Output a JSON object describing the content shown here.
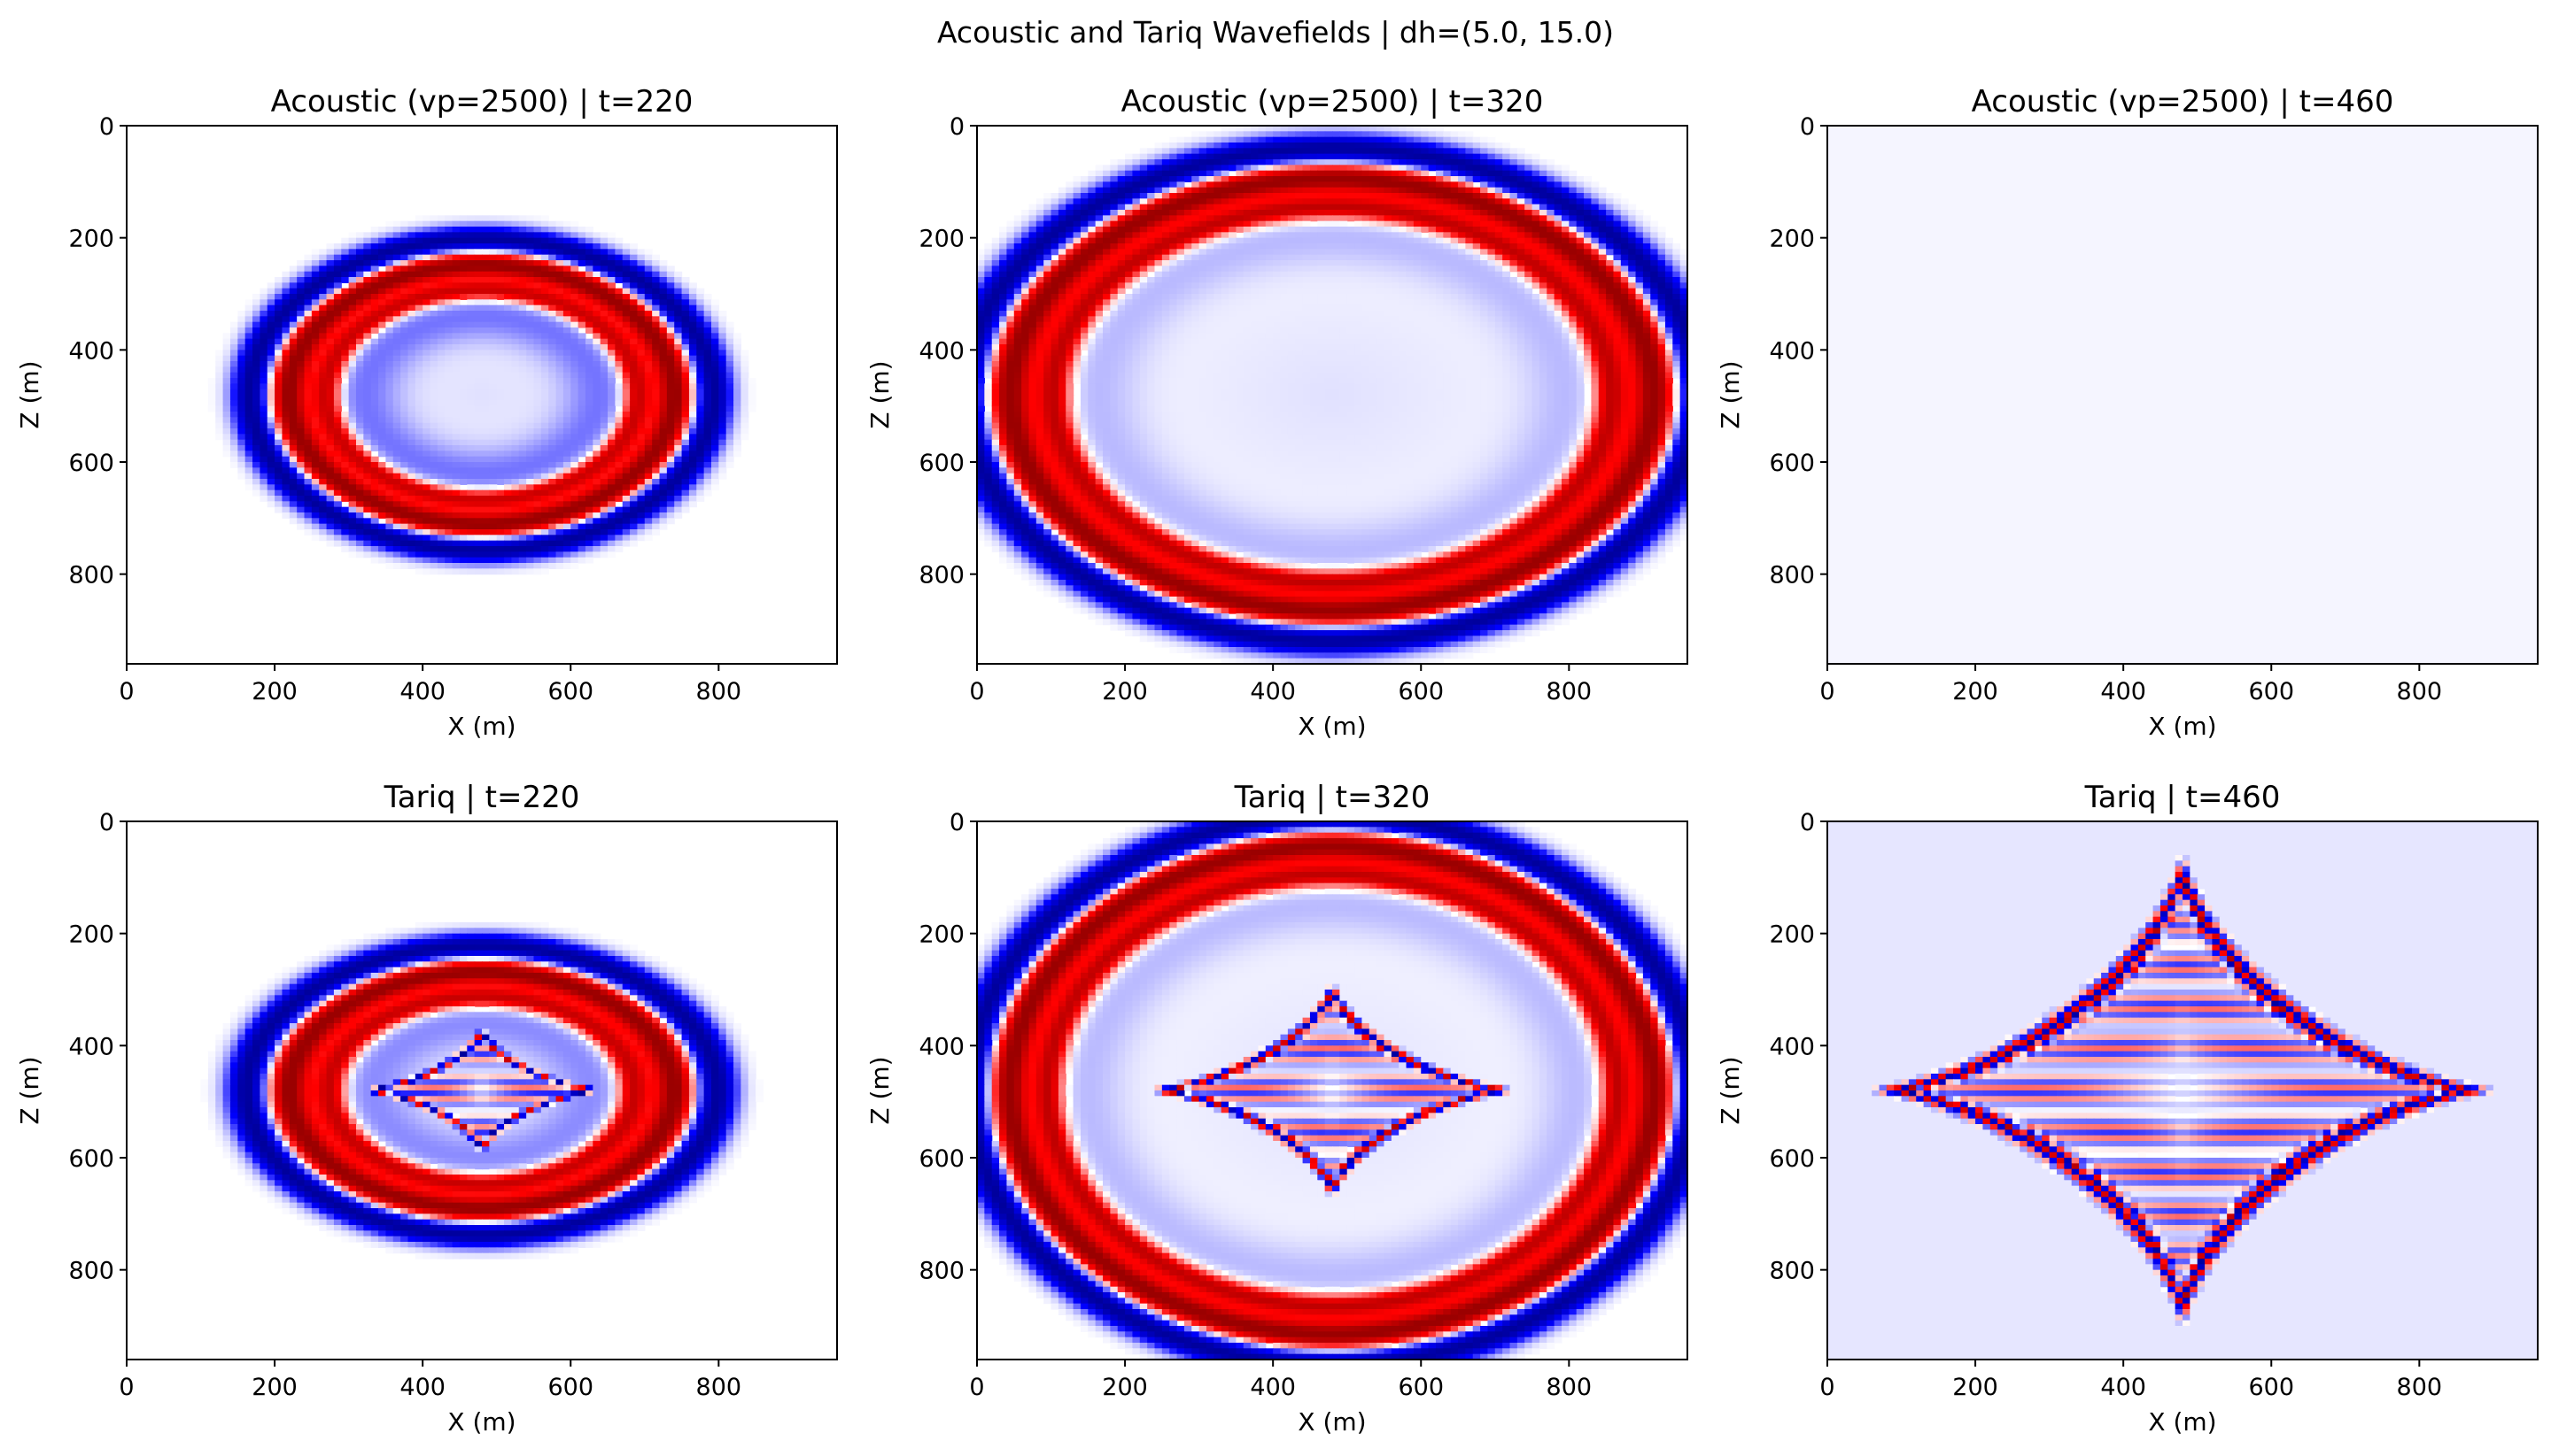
{
  "figure": {
    "suptitle": "Acoustic and Tariq Wavefields | dh=(5.0, 15.0)"
  },
  "chart_data": [
    {
      "type": "heatmap",
      "title": "Acoustic (vp=2500) | t=220",
      "xlabel": "X (m)",
      "ylabel": "Z (m)",
      "xlim": [
        0,
        960
      ],
      "ylim": [
        960,
        0
      ],
      "xticks": [
        "0",
        "200",
        "400",
        "600",
        "800"
      ],
      "yticks": [
        "0",
        "200",
        "400",
        "600",
        "800"
      ],
      "colormap": "seismic",
      "field": {
        "kind": "ring",
        "cx": 480,
        "cz": 480,
        "ax": 265,
        "az": 235,
        "band": 78,
        "inner_halo": 0.25
      }
    },
    {
      "type": "heatmap",
      "title": "Acoustic (vp=2500) | t=320",
      "xlabel": "X (m)",
      "ylabel": "Z (m)",
      "xlim": [
        0,
        960
      ],
      "ylim": [
        960,
        0
      ],
      "xticks": [
        "0",
        "200",
        "400",
        "600",
        "800"
      ],
      "yticks": [
        "0",
        "200",
        "400",
        "600",
        "800"
      ],
      "colormap": "seismic",
      "field": {
        "kind": "ring",
        "cx": 480,
        "cz": 480,
        "ax": 440,
        "az": 390,
        "band": 90,
        "inner_halo": 0.12
      }
    },
    {
      "type": "heatmap",
      "title": "Acoustic (vp=2500) | t=460",
      "xlabel": "X (m)",
      "ylabel": "Z (m)",
      "xlim": [
        0,
        960
      ],
      "ylim": [
        960,
        0
      ],
      "xticks": [
        "0",
        "200",
        "400",
        "600",
        "800"
      ],
      "yticks": [
        "0",
        "200",
        "400",
        "600",
        "800"
      ],
      "colormap": "seismic",
      "field": {
        "kind": "empty"
      }
    },
    {
      "type": "heatmap",
      "title": "Tariq | t=220",
      "xlabel": "X (m)",
      "ylabel": "Z (m)",
      "xlim": [
        0,
        960
      ],
      "ylim": [
        960,
        0
      ],
      "xticks": [
        "0",
        "200",
        "400",
        "600",
        "800"
      ],
      "yticks": [
        "0",
        "200",
        "400",
        "600",
        "800"
      ],
      "colormap": "seismic",
      "field": {
        "kind": "ring_star",
        "cx": 480,
        "cz": 480,
        "ax": 265,
        "az": 215,
        "band": 78,
        "inner_halo": 0.2,
        "star_rx": 165,
        "star_rz": 110
      }
    },
    {
      "type": "heatmap",
      "title": "Tariq | t=320",
      "xlabel": "X (m)",
      "ylabel": "Z (m)",
      "xlim": [
        0,
        960
      ],
      "ylim": [
        960,
        0
      ],
      "xticks": [
        "0",
        "200",
        "400",
        "600",
        "800"
      ],
      "yticks": [
        "0",
        "200",
        "400",
        "600",
        "800"
      ],
      "colormap": "seismic",
      "field": {
        "kind": "ring_star",
        "cx": 480,
        "cz": 480,
        "ax": 440,
        "az": 440,
        "band": 90,
        "inner_halo": 0.12,
        "star_rx": 245,
        "star_rz": 185
      }
    },
    {
      "type": "heatmap",
      "title": "Tariq | t=460",
      "xlabel": "X (m)",
      "ylabel": "Z (m)",
      "xlim": [
        0,
        960
      ],
      "ylim": [
        960,
        0
      ],
      "xticks": [
        "0",
        "200",
        "400",
        "600",
        "800"
      ],
      "yticks": [
        "0",
        "200",
        "400",
        "600",
        "800"
      ],
      "colormap": "seismic",
      "field": {
        "kind": "star",
        "cx": 480,
        "cz": 480,
        "star_rx": 405,
        "star_rz": 400
      }
    }
  ]
}
